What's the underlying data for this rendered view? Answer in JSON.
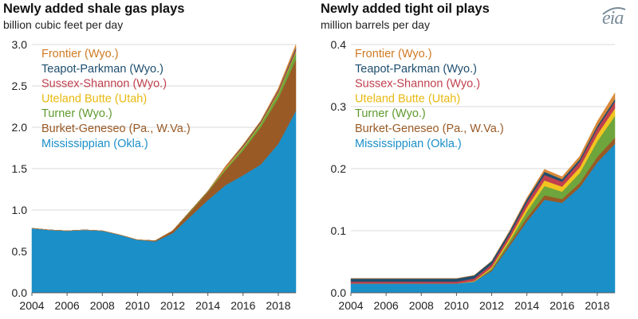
{
  "logo": "eia",
  "colors": {
    "Mississippian (Okla.)": "#1b8fc8",
    "Burket-Geneseo (Pa., W.Va.)": "#9a5a25",
    "Turner (Wyo.)": "#6ea53c",
    "Uteland Butte (Utah)": "#f2c41f",
    "Sussex-Shannon (Wyo.)": "#c0404d",
    "Teapot-Parkman (Wyo.)": "#1f4e6e",
    "Frontier (Wyo.)": "#d8893a"
  },
  "legend_text_colors": {
    "Frontier (Wyo.)": "#d07a22",
    "Teapot-Parkman (Wyo.)": "#1f4e6e",
    "Sussex-Shannon (Wyo.)": "#c0404d",
    "Uteland Butte (Utah)": "#e8b80e",
    "Turner (Wyo.)": "#5e9a2e",
    "Burket-Geneseo (Pa., W.Va.)": "#9a5a25",
    "Mississippian (Okla.)": "#1b8fc8"
  },
  "chart_data": [
    {
      "type": "area",
      "stacked": true,
      "title": "Newly added shale gas plays",
      "subtitle": "billion cubic feet per day",
      "x": [
        2004,
        2005,
        2006,
        2007,
        2008,
        2009,
        2010,
        2011,
        2012,
        2013,
        2014,
        2015,
        2016,
        2017,
        2018,
        2019
      ],
      "xticks": [
        2004,
        2006,
        2008,
        2010,
        2012,
        2014,
        2016,
        2018
      ],
      "ylim": [
        0,
        3.0
      ],
      "yticks": [
        "0.0",
        "0.5",
        "1.0",
        "1.5",
        "2.0",
        "2.5",
        "3.0"
      ],
      "legend": [
        "Frontier (Wyo.)",
        "Teapot-Parkman (Wyo.)",
        "Sussex-Shannon (Wyo.)",
        "Uteland Butte (Utah)",
        "Turner (Wyo.)",
        "Burket-Geneseo (Pa., W.Va.)",
        "Mississippian (Okla.)"
      ],
      "series": [
        {
          "name": "Mississippian (Okla.)",
          "values": [
            0.78,
            0.76,
            0.75,
            0.76,
            0.75,
            0.7,
            0.64,
            0.62,
            0.72,
            0.92,
            1.12,
            1.3,
            1.42,
            1.55,
            1.8,
            2.2
          ]
        },
        {
          "name": "Burket-Geneseo (Pa., W.Va.)",
          "values": [
            0,
            0,
            0,
            0,
            0,
            0,
            0,
            0.01,
            0.03,
            0.06,
            0.1,
            0.18,
            0.3,
            0.45,
            0.55,
            0.62
          ]
        },
        {
          "name": "Turner (Wyo.)",
          "values": [
            0,
            0,
            0,
            0,
            0,
            0,
            0,
            0,
            0,
            0.01,
            0.01,
            0.02,
            0.03,
            0.04,
            0.06,
            0.09
          ]
        },
        {
          "name": "Uteland Butte (Utah)",
          "values": [
            0,
            0,
            0,
            0,
            0,
            0,
            0,
            0,
            0,
            0,
            0,
            0.01,
            0.01,
            0.01,
            0.01,
            0.01
          ]
        },
        {
          "name": "Sussex-Shannon (Wyo.)",
          "values": [
            0,
            0,
            0,
            0,
            0,
            0,
            0,
            0,
            0,
            0,
            0,
            0.01,
            0.01,
            0.01,
            0.02,
            0.02
          ]
        },
        {
          "name": "Teapot-Parkman (Wyo.)",
          "values": [
            0,
            0,
            0,
            0,
            0,
            0,
            0,
            0,
            0,
            0,
            0,
            0,
            0.01,
            0.01,
            0.01,
            0.02
          ]
        },
        {
          "name": "Frontier (Wyo.)",
          "values": [
            0,
            0,
            0,
            0,
            0,
            0,
            0,
            0,
            0,
            0,
            0,
            0.01,
            0.01,
            0.01,
            0.02,
            0.04
          ]
        }
      ]
    },
    {
      "type": "area",
      "stacked": true,
      "title": "Newly added tight oil plays",
      "subtitle": "million barrels per day",
      "x": [
        2004,
        2005,
        2006,
        2007,
        2008,
        2009,
        2010,
        2011,
        2012,
        2013,
        2014,
        2015,
        2016,
        2017,
        2018,
        2019
      ],
      "xticks": [
        2004,
        2006,
        2008,
        2010,
        2012,
        2014,
        2016,
        2018
      ],
      "ylim": [
        0,
        0.4
      ],
      "yticks": [
        "0.0",
        "0.1",
        "0.2",
        "0.3",
        "0.4"
      ],
      "legend": [
        "Frontier (Wyo.)",
        "Teapot-Parkman (Wyo.)",
        "Sussex-Shannon (Wyo.)",
        "Uteland Butte (Utah)",
        "Turner (Wyo.)",
        "Burket-Geneseo (Pa., W.Va.)",
        "Mississippian (Okla.)"
      ],
      "series": [
        {
          "name": "Mississippian (Okla.)",
          "values": [
            0.015,
            0.015,
            0.015,
            0.015,
            0.015,
            0.015,
            0.015,
            0.018,
            0.035,
            0.075,
            0.115,
            0.15,
            0.145,
            0.17,
            0.21,
            0.24
          ]
        },
        {
          "name": "Burket-Geneseo (Pa., W.Va.)",
          "values": [
            0,
            0,
            0,
            0,
            0,
            0,
            0,
            0,
            0.002,
            0.004,
            0.006,
            0.007,
            0.006,
            0.007,
            0.009,
            0.01
          ]
        },
        {
          "name": "Turner (Wyo.)",
          "values": [
            0,
            0,
            0,
            0,
            0,
            0,
            0,
            0,
            0.002,
            0.004,
            0.01,
            0.015,
            0.012,
            0.016,
            0.025,
            0.035
          ]
        },
        {
          "name": "Uteland Butte (Utah)",
          "values": [
            0,
            0,
            0,
            0,
            0,
            0,
            0,
            0.001,
            0.002,
            0.004,
            0.007,
            0.009,
            0.008,
            0.009,
            0.011,
            0.012
          ]
        },
        {
          "name": "Sussex-Shannon (Wyo.)",
          "values": [
            0.003,
            0.003,
            0.003,
            0.003,
            0.003,
            0.003,
            0.003,
            0.004,
            0.005,
            0.006,
            0.008,
            0.009,
            0.008,
            0.009,
            0.01,
            0.011
          ]
        },
        {
          "name": "Teapot-Parkman (Wyo.)",
          "values": [
            0.005,
            0.005,
            0.005,
            0.005,
            0.005,
            0.005,
            0.005,
            0.005,
            0.005,
            0.005,
            0.005,
            0.005,
            0.004,
            0.004,
            0.004,
            0.004
          ]
        },
        {
          "name": "Frontier (Wyo.)",
          "values": [
            0,
            0,
            0,
            0,
            0,
            0,
            0,
            0,
            0,
            0.001,
            0.002,
            0.004,
            0.004,
            0.005,
            0.007,
            0.01
          ]
        }
      ]
    }
  ]
}
